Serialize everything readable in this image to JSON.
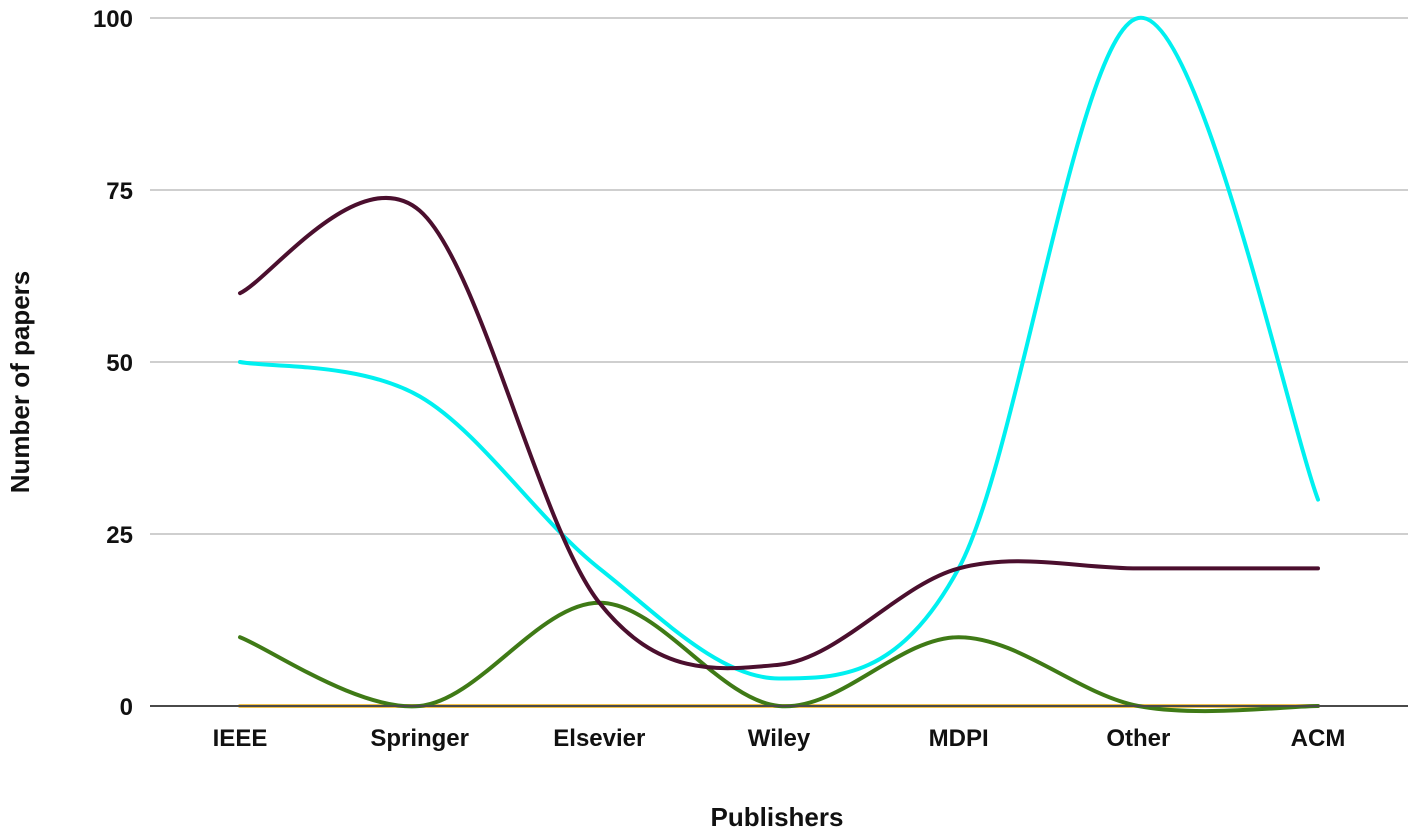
{
  "chart_data": {
    "type": "line",
    "title": "",
    "xlabel": "Publishers",
    "ylabel": "Number of papers",
    "categories": [
      "IEEE",
      "Springer",
      "Elsevier",
      "Wiley",
      "MDPI",
      "Other",
      "ACM"
    ],
    "ylim": [
      0,
      100
    ],
    "yticks": [
      0,
      25,
      50,
      75,
      100
    ],
    "grid": true,
    "legend": "none",
    "smooth": true,
    "series": [
      {
        "color": "#4b0f2e",
        "values": [
          60,
          72,
          15,
          6,
          20,
          20,
          20
        ]
      },
      {
        "color": "#00f0f0",
        "values": [
          50,
          45,
          20,
          4,
          20,
          100,
          30
        ]
      },
      {
        "color": "#3f7a16",
        "values": [
          10,
          0,
          15,
          0,
          10,
          0,
          0
        ]
      },
      {
        "color": "#f2c24a",
        "values": [
          0,
          0,
          0,
          0,
          0,
          0,
          0
        ]
      }
    ]
  }
}
